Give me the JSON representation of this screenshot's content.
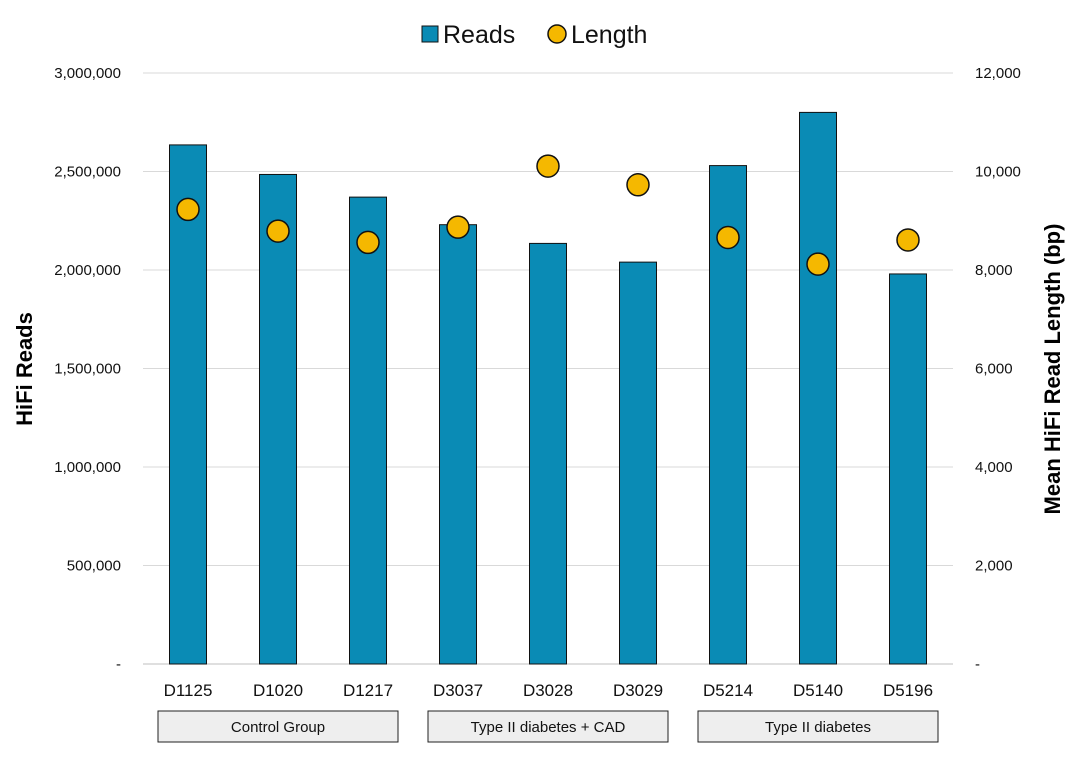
{
  "chart_data": {
    "type": "bar",
    "categories": [
      "D1125",
      "D1020",
      "D1217",
      "D3037",
      "D3028",
      "D3029",
      "D5214",
      "D5140",
      "D5196"
    ],
    "series": [
      {
        "name": "Reads",
        "type": "bar",
        "axis": "left",
        "color": "#0a8bb5",
        "values": [
          2635000,
          2485000,
          2370000,
          2230000,
          2135000,
          2040000,
          2530000,
          2800000,
          1980000
        ]
      },
      {
        "name": "Length",
        "type": "scatter",
        "axis": "right",
        "color": "#f5b800",
        "values": [
          9230,
          8790,
          8560,
          8870,
          10110,
          9730,
          8660,
          8120,
          8610
        ]
      }
    ],
    "ylabel": "HiFi Reads",
    "y2label": "Mean HiFi Read Length (bp)",
    "ylim": [
      0,
      3000000
    ],
    "y2lim": [
      0,
      12000
    ],
    "yticks": [
      "-",
      "500,000",
      "1,000,000",
      "1,500,000",
      "2,000,000",
      "2,500,000",
      "3,000,000"
    ],
    "y2ticks": [
      "-",
      "2,000",
      "4,000",
      "6,000",
      "8,000",
      "10,000",
      "12,000"
    ],
    "groups": [
      {
        "label": "Control Group",
        "members": [
          "D1125",
          "D1020",
          "D1217"
        ]
      },
      {
        "label": "Type II diabetes + CAD",
        "members": [
          "D3037",
          "D3028",
          "D3029"
        ]
      },
      {
        "label": "Type II diabetes",
        "members": [
          "D5214",
          "D5140",
          "D5196"
        ]
      }
    ],
    "legend": "top-center",
    "grid": true
  }
}
